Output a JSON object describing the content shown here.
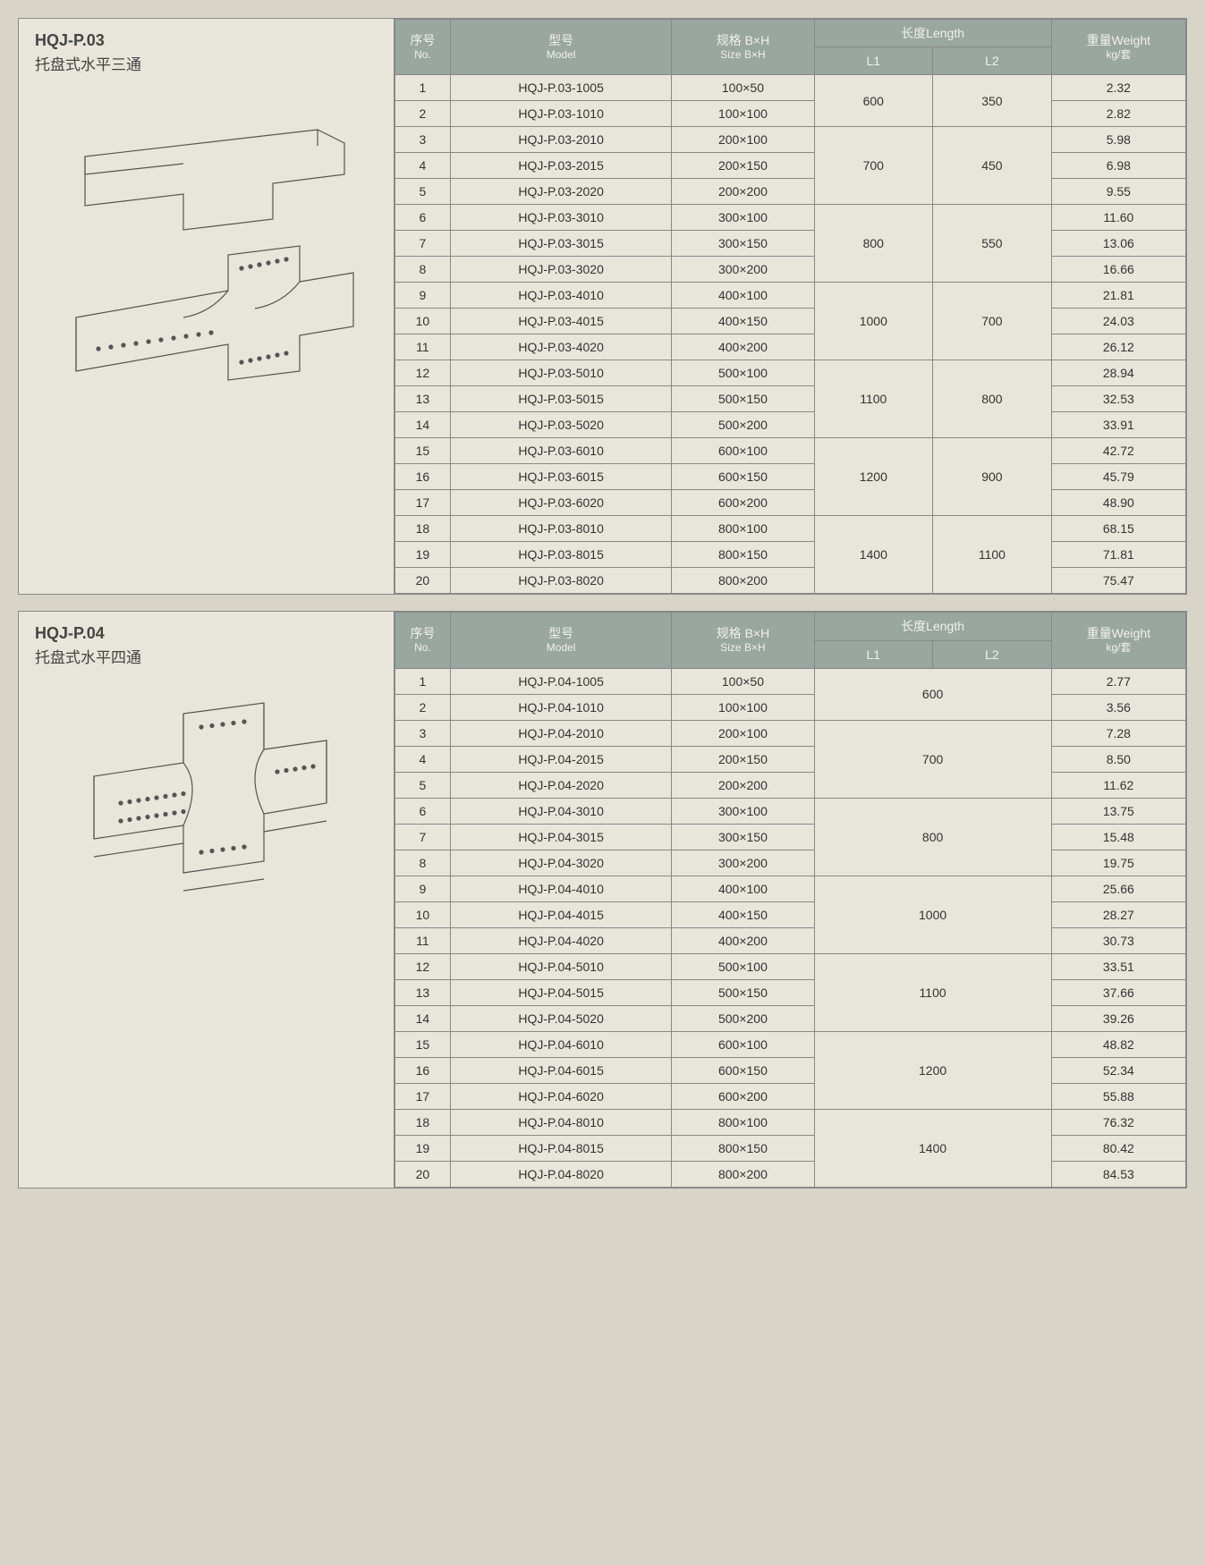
{
  "colors": {
    "page_bg": "#d8d4c8",
    "panel_bg": "#e8e5da",
    "header_bg": "#9aa6a0",
    "header_text": "#f0f0f0",
    "border": "#888888",
    "text": "#333333"
  },
  "typography": {
    "title_fontsize": 18,
    "title_weight": "bold",
    "body_fontsize": 14
  },
  "headers": {
    "no": {
      "cn": "序号",
      "en": "No."
    },
    "model": {
      "cn": "型号",
      "en": "Model"
    },
    "size": {
      "cn": "规格 B×H",
      "en": "Size B×H"
    },
    "length": {
      "cn": "长度Length",
      "l1": "L1",
      "l2": "L2"
    },
    "weight": {
      "cn": "重量Weight",
      "unit": "kg/套"
    }
  },
  "sections": [
    {
      "code": "HQJ-P.03",
      "name": "托盘式水平三通",
      "has_l2": true,
      "diagram": "tee",
      "groups": [
        {
          "l1": "600",
          "l2": "350",
          "rows": [
            {
              "no": 1,
              "model": "HQJ-P.03-1005",
              "size": "100×50",
              "wt": "2.32"
            },
            {
              "no": 2,
              "model": "HQJ-P.03-1010",
              "size": "100×100",
              "wt": "2.82"
            }
          ]
        },
        {
          "l1": "700",
          "l2": "450",
          "rows": [
            {
              "no": 3,
              "model": "HQJ-P.03-2010",
              "size": "200×100",
              "wt": "5.98"
            },
            {
              "no": 4,
              "model": "HQJ-P.03-2015",
              "size": "200×150",
              "wt": "6.98"
            },
            {
              "no": 5,
              "model": "HQJ-P.03-2020",
              "size": "200×200",
              "wt": "9.55"
            }
          ]
        },
        {
          "l1": "800",
          "l2": "550",
          "rows": [
            {
              "no": 6,
              "model": "HQJ-P.03-3010",
              "size": "300×100",
              "wt": "11.60"
            },
            {
              "no": 7,
              "model": "HQJ-P.03-3015",
              "size": "300×150",
              "wt": "13.06"
            },
            {
              "no": 8,
              "model": "HQJ-P.03-3020",
              "size": "300×200",
              "wt": "16.66"
            }
          ]
        },
        {
          "l1": "1000",
          "l2": "700",
          "rows": [
            {
              "no": 9,
              "model": "HQJ-P.03-4010",
              "size": "400×100",
              "wt": "21.81"
            },
            {
              "no": 10,
              "model": "HQJ-P.03-4015",
              "size": "400×150",
              "wt": "24.03"
            },
            {
              "no": 11,
              "model": "HQJ-P.03-4020",
              "size": "400×200",
              "wt": "26.12"
            }
          ]
        },
        {
          "l1": "1100",
          "l2": "800",
          "rows": [
            {
              "no": 12,
              "model": "HQJ-P.03-5010",
              "size": "500×100",
              "wt": "28.94"
            },
            {
              "no": 13,
              "model": "HQJ-P.03-5015",
              "size": "500×150",
              "wt": "32.53"
            },
            {
              "no": 14,
              "model": "HQJ-P.03-5020",
              "size": "500×200",
              "wt": "33.91"
            }
          ]
        },
        {
          "l1": "1200",
          "l2": "900",
          "rows": [
            {
              "no": 15,
              "model": "HQJ-P.03-6010",
              "size": "600×100",
              "wt": "42.72"
            },
            {
              "no": 16,
              "model": "HQJ-P.03-6015",
              "size": "600×150",
              "wt": "45.79"
            },
            {
              "no": 17,
              "model": "HQJ-P.03-6020",
              "size": "600×200",
              "wt": "48.90"
            }
          ]
        },
        {
          "l1": "1400",
          "l2": "1100",
          "rows": [
            {
              "no": 18,
              "model": "HQJ-P.03-8010",
              "size": "800×100",
              "wt": "68.15"
            },
            {
              "no": 19,
              "model": "HQJ-P.03-8015",
              "size": "800×150",
              "wt": "71.81"
            },
            {
              "no": 20,
              "model": "HQJ-P.03-8020",
              "size": "800×200",
              "wt": "75.47"
            }
          ]
        }
      ]
    },
    {
      "code": "HQJ-P.04",
      "name": "托盘式水平四通",
      "has_l2": false,
      "diagram": "cross",
      "groups": [
        {
          "l1": "600",
          "rows": [
            {
              "no": 1,
              "model": "HQJ-P.04-1005",
              "size": "100×50",
              "wt": "2.77"
            },
            {
              "no": 2,
              "model": "HQJ-P.04-1010",
              "size": "100×100",
              "wt": "3.56"
            }
          ]
        },
        {
          "l1": "700",
          "rows": [
            {
              "no": 3,
              "model": "HQJ-P.04-2010",
              "size": "200×100",
              "wt": "7.28"
            },
            {
              "no": 4,
              "model": "HQJ-P.04-2015",
              "size": "200×150",
              "wt": "8.50"
            },
            {
              "no": 5,
              "model": "HQJ-P.04-2020",
              "size": "200×200",
              "wt": "11.62"
            }
          ]
        },
        {
          "l1": "800",
          "rows": [
            {
              "no": 6,
              "model": "HQJ-P.04-3010",
              "size": "300×100",
              "wt": "13.75"
            },
            {
              "no": 7,
              "model": "HQJ-P.04-3015",
              "size": "300×150",
              "wt": "15.48"
            },
            {
              "no": 8,
              "model": "HQJ-P.04-3020",
              "size": "300×200",
              "wt": "19.75"
            }
          ]
        },
        {
          "l1": "1000",
          "rows": [
            {
              "no": 9,
              "model": "HQJ-P.04-4010",
              "size": "400×100",
              "wt": "25.66"
            },
            {
              "no": 10,
              "model": "HQJ-P.04-4015",
              "size": "400×150",
              "wt": "28.27"
            },
            {
              "no": 11,
              "model": "HQJ-P.04-4020",
              "size": "400×200",
              "wt": "30.73"
            }
          ]
        },
        {
          "l1": "1100",
          "rows": [
            {
              "no": 12,
              "model": "HQJ-P.04-5010",
              "size": "500×100",
              "wt": "33.51"
            },
            {
              "no": 13,
              "model": "HQJ-P.04-5015",
              "size": "500×150",
              "wt": "37.66"
            },
            {
              "no": 14,
              "model": "HQJ-P.04-5020",
              "size": "500×200",
              "wt": "39.26"
            }
          ]
        },
        {
          "l1": "1200",
          "rows": [
            {
              "no": 15,
              "model": "HQJ-P.04-6010",
              "size": "600×100",
              "wt": "48.82"
            },
            {
              "no": 16,
              "model": "HQJ-P.04-6015",
              "size": "600×150",
              "wt": "52.34"
            },
            {
              "no": 17,
              "model": "HQJ-P.04-6020",
              "size": "600×200",
              "wt": "55.88"
            }
          ]
        },
        {
          "l1": "1400",
          "rows": [
            {
              "no": 18,
              "model": "HQJ-P.04-8010",
              "size": "800×100",
              "wt": "76.32"
            },
            {
              "no": 19,
              "model": "HQJ-P.04-8015",
              "size": "800×150",
              "wt": "80.42"
            },
            {
              "no": 20,
              "model": "HQJ-P.04-8020",
              "size": "800×200",
              "wt": "84.53"
            }
          ]
        }
      ]
    }
  ]
}
